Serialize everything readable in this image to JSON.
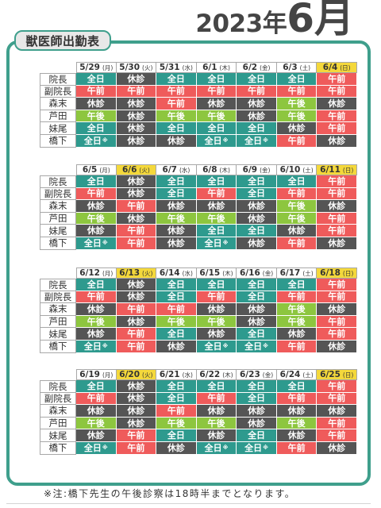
{
  "title": {
    "year": "2023年",
    "month": "6月"
  },
  "label": "獣医師出勤表",
  "staff": [
    "院長",
    "副院長",
    "森末",
    "芦田",
    "妹尾",
    "橋下"
  ],
  "weeks": [
    {
      "days": [
        {
          "date": "5/29",
          "dow": "(月)",
          "highlight": false
        },
        {
          "date": "5/30",
          "dow": "(火)",
          "highlight": false
        },
        {
          "date": "5/31",
          "dow": "(水)",
          "highlight": false
        },
        {
          "date": "6/1",
          "dow": "(木)",
          "highlight": false
        },
        {
          "date": "6/2",
          "dow": "(金)",
          "highlight": false
        },
        {
          "date": "6/3",
          "dow": "(土)",
          "highlight": false
        },
        {
          "date": "6/4",
          "dow": "(日)",
          "highlight": true
        }
      ],
      "shifts": [
        [
          "全日",
          "休診",
          "全日",
          "全日",
          "全日",
          "全日",
          "午前"
        ],
        [
          "午前",
          "午前",
          "午前",
          "午前",
          "午前",
          "午前",
          "午前"
        ],
        [
          "休診",
          "休診",
          "午前",
          "休診",
          "休診",
          "午後",
          "休診"
        ],
        [
          "午後",
          "休診",
          "午後",
          "午後",
          "休診",
          "午後",
          "午前"
        ],
        [
          "全日",
          "休診",
          "全日",
          "全日",
          "全日",
          "休診",
          "午前"
        ],
        [
          "全日※",
          "休診",
          "休診",
          "全日※",
          "全日※",
          "午前",
          "休診"
        ]
      ]
    },
    {
      "days": [
        {
          "date": "6/5",
          "dow": "(月)",
          "highlight": false
        },
        {
          "date": "6/6",
          "dow": "(火)",
          "highlight": true
        },
        {
          "date": "6/7",
          "dow": "(水)",
          "highlight": false
        },
        {
          "date": "6/8",
          "dow": "(木)",
          "highlight": false
        },
        {
          "date": "6/9",
          "dow": "(金)",
          "highlight": false
        },
        {
          "date": "6/10",
          "dow": "(土)",
          "highlight": false
        },
        {
          "date": "6/11",
          "dow": "(日)",
          "highlight": true
        }
      ],
      "shifts": [
        [
          "全日",
          "休診",
          "全日",
          "全日",
          "全日",
          "全日",
          "午前"
        ],
        [
          "午前",
          "休診",
          "全日",
          "午前",
          "全日",
          "午前",
          "午前"
        ],
        [
          "休診",
          "午前",
          "休診",
          "休診",
          "休診",
          "午後",
          "休診"
        ],
        [
          "午後",
          "休診",
          "午後",
          "午後",
          "休診",
          "午後",
          "午前"
        ],
        [
          "休診",
          "午前",
          "休診",
          "全日",
          "全日",
          "休診",
          "午前"
        ],
        [
          "全日※",
          "午前",
          "休診",
          "全日※",
          "休診",
          "午前",
          "休診"
        ]
      ]
    },
    {
      "days": [
        {
          "date": "6/12",
          "dow": "(月)",
          "highlight": false
        },
        {
          "date": "6/13",
          "dow": "(火)",
          "highlight": true
        },
        {
          "date": "6/14",
          "dow": "(水)",
          "highlight": false
        },
        {
          "date": "6/15",
          "dow": "(木)",
          "highlight": false
        },
        {
          "date": "6/16",
          "dow": "(金)",
          "highlight": false
        },
        {
          "date": "6/17",
          "dow": "(土)",
          "highlight": false
        },
        {
          "date": "6/18",
          "dow": "(日)",
          "highlight": true
        }
      ],
      "shifts": [
        [
          "全日",
          "休診",
          "全日",
          "全日",
          "全日",
          "全日",
          "午前"
        ],
        [
          "午前",
          "休診",
          "全日",
          "午前",
          "全日",
          "午前",
          "午前"
        ],
        [
          "休診",
          "午前",
          "午前",
          "休診",
          "休診",
          "午後",
          "休診"
        ],
        [
          "午後",
          "休診",
          "午後",
          "午後",
          "休診",
          "午後",
          "午前"
        ],
        [
          "休診",
          "午前",
          "全日",
          "休診",
          "全日",
          "休診",
          "午前"
        ],
        [
          "全日※",
          "午前",
          "休診",
          "全日※",
          "全日※",
          "午前",
          "休診"
        ]
      ]
    },
    {
      "days": [
        {
          "date": "6/19",
          "dow": "(月)",
          "highlight": false
        },
        {
          "date": "6/20",
          "dow": "(火)",
          "highlight": true
        },
        {
          "date": "6/21",
          "dow": "(水)",
          "highlight": false
        },
        {
          "date": "6/22",
          "dow": "(木)",
          "highlight": false
        },
        {
          "date": "6/23",
          "dow": "(金)",
          "highlight": false
        },
        {
          "date": "6/24",
          "dow": "(土)",
          "highlight": false
        },
        {
          "date": "6/25",
          "dow": "(日)",
          "highlight": true
        }
      ],
      "shifts": [
        [
          "全日",
          "休診",
          "全日",
          "全日",
          "全日",
          "全日",
          "午前"
        ],
        [
          "午前",
          "休診",
          "全日",
          "午前",
          "全日",
          "午前",
          "午前"
        ],
        [
          "休診",
          "休診",
          "午前",
          "休診",
          "休診",
          "休診",
          "休診"
        ],
        [
          "午後",
          "休診",
          "午後",
          "午後",
          "休診",
          "午後",
          "午前"
        ],
        [
          "休診",
          "午前",
          "全日",
          "休診",
          "全日",
          "休診",
          "午前"
        ],
        [
          "全日※",
          "午前",
          "休診",
          "全日※",
          "全日※",
          "午前",
          "休診"
        ]
      ]
    }
  ],
  "footnote": "※注:橋下先生の午後診察は18時半までとなります。",
  "colors": {
    "frame": "#3f9f8c",
    "highlight": "#f4d83b",
    "status": {
      "全日": "#2e9a8e",
      "休診": "#555555",
      "午前": "#ef5b5b",
      "午後": "#8dc63f"
    }
  }
}
